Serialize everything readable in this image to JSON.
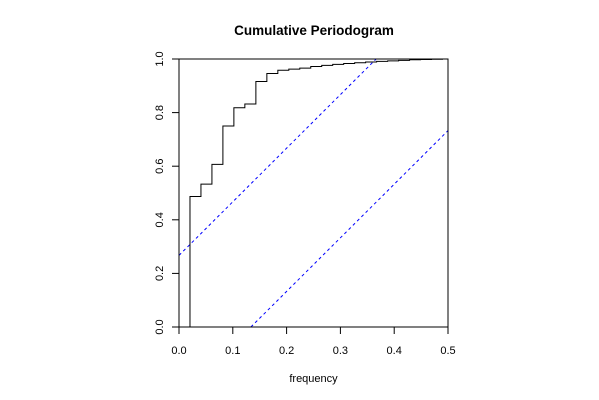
{
  "chart_data": {
    "type": "line",
    "title": "Cumulative Periodogram",
    "xlabel": "frequency",
    "ylabel": "",
    "xlim": [
      0,
      0.5
    ],
    "ylim": [
      0,
      1
    ],
    "x_ticks": [
      "0.0",
      "0.1",
      "0.2",
      "0.3",
      "0.4",
      "0.5"
    ],
    "y_ticks": [
      "0.0",
      "0.2",
      "0.4",
      "0.6",
      "0.8",
      "1.0"
    ],
    "grid": false,
    "step_series": {
      "color": "#000000",
      "x": [
        0.0,
        0.0204,
        0.0204,
        0.0408,
        0.0612,
        0.0816,
        0.102,
        0.1224,
        0.1429,
        0.1633,
        0.1837,
        0.2041,
        0.2245,
        0.2449,
        0.2653,
        0.2857,
        0.3061,
        0.3265,
        0.3469,
        0.3673,
        0.3878,
        0.4082,
        0.4286,
        0.449,
        0.4694,
        0.4898,
        0.5
      ],
      "y": [
        0.0,
        0.0,
        0.487,
        0.533,
        0.607,
        0.75,
        0.818,
        0.832,
        0.916,
        0.946,
        0.958,
        0.962,
        0.966,
        0.972,
        0.976,
        0.98,
        0.983,
        0.986,
        0.989,
        0.991,
        0.993,
        0.995,
        0.997,
        0.998,
        0.999,
        1.0,
        1.0
      ]
    },
    "confidence_bands": {
      "color": "#0000ff",
      "style": "dashed",
      "upper": {
        "x": [
          0.0,
          0.3664
        ],
        "y": [
          0.2672,
          1.0
        ]
      },
      "lower": {
        "x": [
          0.1336,
          0.5
        ],
        "y": [
          0.0,
          0.7328
        ]
      }
    }
  }
}
